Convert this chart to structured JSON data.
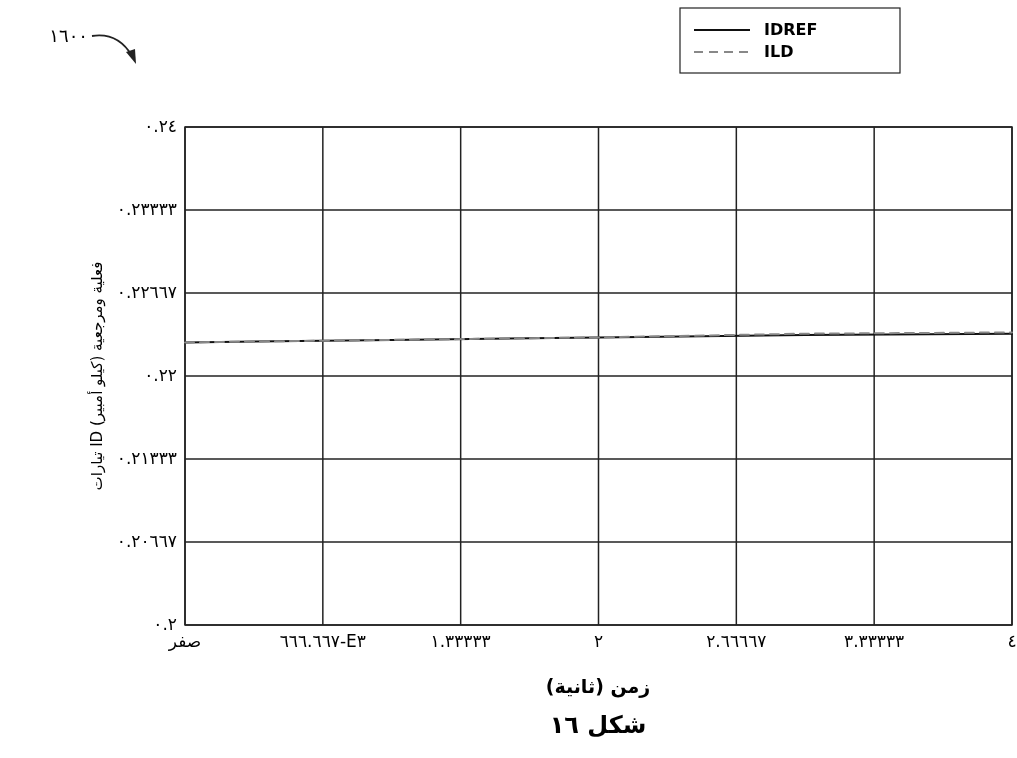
{
  "chart_data": {
    "type": "line",
    "title": "شكل ١٦",
    "xlabel": "زمن (ثانية)",
    "ylabel": "تيارات ID فعلية ومرجعية (كيلو أمبير)",
    "annotations": [
      "١٦٠٠"
    ],
    "x": [
      0,
      1,
      2,
      3,
      4
    ],
    "series": [
      {
        "name": "IDREF",
        "color": "#111111",
        "line_style": "solid",
        "values": [
          0.2227,
          0.2229,
          0.2231,
          0.2233,
          0.2234
        ]
      },
      {
        "name": "ILD",
        "color": "#888888",
        "line_style": "dashed",
        "values": [
          0.2227,
          0.2229,
          0.2231,
          0.2234,
          0.2235
        ]
      }
    ],
    "xlim": [
      0,
      4
    ],
    "xticks": [
      {
        "value": 0,
        "label": "صفر"
      },
      {
        "value": 0.666667,
        "label": "٦٦٦.٦٦٧-E٣"
      },
      {
        "value": 1.33333,
        "label": "١.٣٣٣٣٣"
      },
      {
        "value": 2,
        "label": "٢"
      },
      {
        "value": 2.66667,
        "label": "٢.٦٦٦٦٧"
      },
      {
        "value": 3.33333,
        "label": "٣.٣٣٣٣٣"
      },
      {
        "value": 4,
        "label": "٤"
      }
    ],
    "ylim": [
      0.2,
      0.24
    ],
    "yticks": [
      {
        "value": 0.2,
        "label": "٠.٢"
      },
      {
        "value": 0.20667,
        "label": "٠.٢٠٦٦٧"
      },
      {
        "value": 0.21333,
        "label": "٠.٢١٣٣٣"
      },
      {
        "value": 0.22,
        "label": "٠.٢٢"
      },
      {
        "value": 0.22667,
        "label": "٠.٢٢٦٦٧"
      },
      {
        "value": 0.23333,
        "label": "٠.٢٣٣٣٣"
      },
      {
        "value": 0.24,
        "label": "٠.٢٤"
      }
    ],
    "grid": true,
    "legend": "top right"
  }
}
